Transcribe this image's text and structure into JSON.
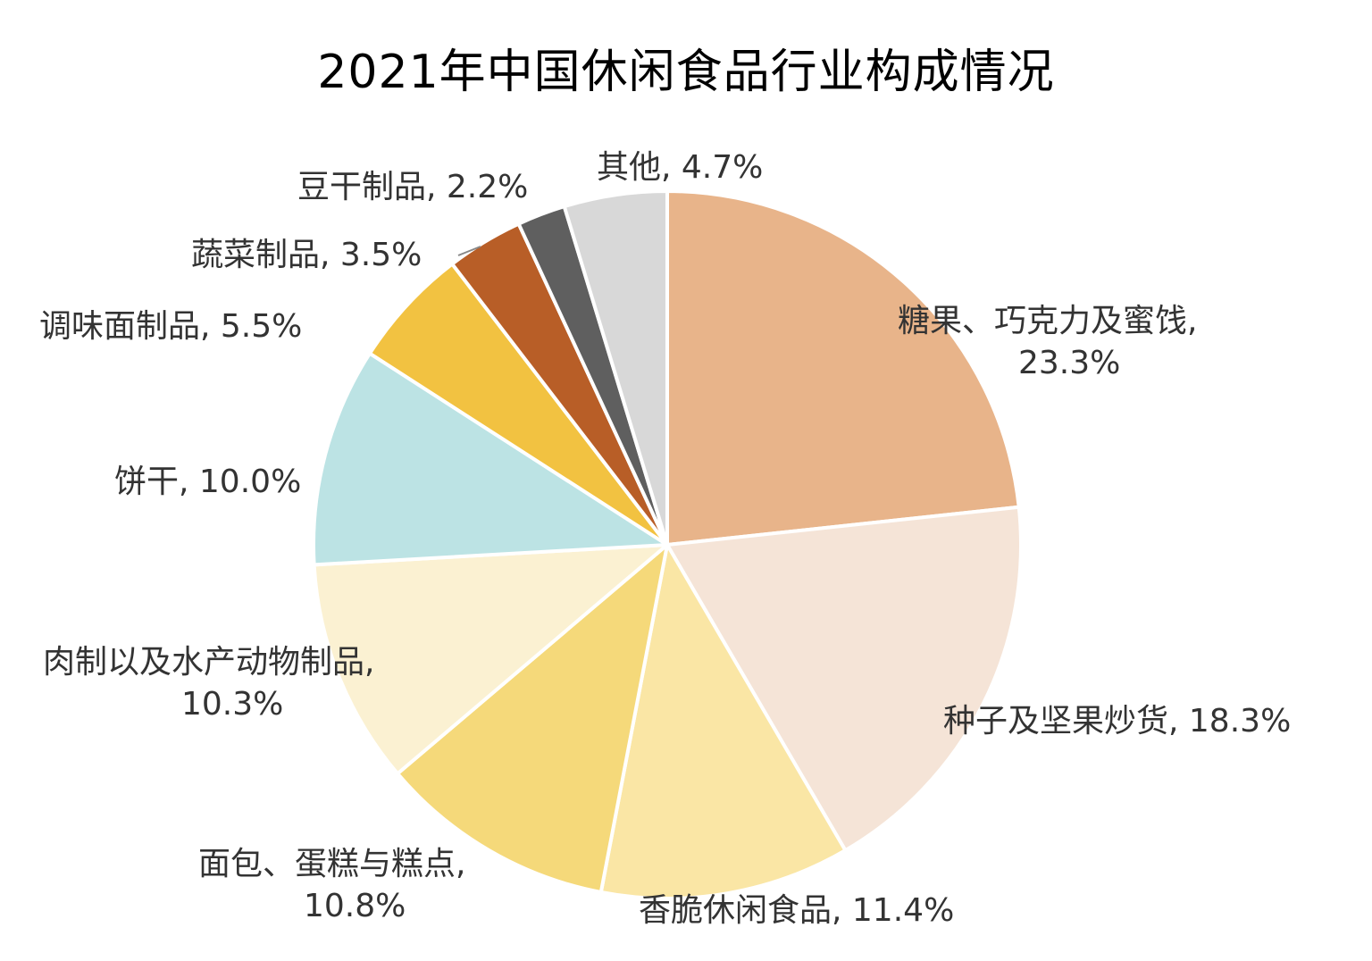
{
  "chart_data": {
    "type": "pie",
    "title": "2021年中国休闲食品行业构成情况",
    "slices": [
      {
        "label": "糖果、巧克力及蜜饯",
        "value": 23.3,
        "display": "23.3%",
        "color": "#E8B48A"
      },
      {
        "label": "种子及坚果炒货",
        "value": 18.3,
        "display": "18.3%",
        "color": "#F5E4D7"
      },
      {
        "label": "香脆休闲食品",
        "value": 11.4,
        "display": "11.4%",
        "color": "#FAE6A5"
      },
      {
        "label": "面包、蛋糕与糕点",
        "value": 10.8,
        "display": "10.8%",
        "color": "#F5D97A"
      },
      {
        "label": "肉制以及水产动物制品",
        "value": 10.3,
        "display": "10.3%",
        "color": "#FBF1D2"
      },
      {
        "label": "饼干",
        "value": 10.0,
        "display": "10.0%",
        "color": "#BCE3E4"
      },
      {
        "label": "调味面制品",
        "value": 5.5,
        "display": "5.5%",
        "color": "#F2C241"
      },
      {
        "label": "蔬菜制品",
        "value": 3.5,
        "display": "3.5%",
        "color": "#B85E27"
      },
      {
        "label": "豆干制品",
        "value": 2.2,
        "display": "2.2%",
        "color": "#5F5F5F"
      },
      {
        "label": "其他",
        "value": 4.7,
        "display": "4.7%",
        "color": "#D8D8D8"
      }
    ],
    "start_position": "12 o'clock",
    "direction": "clockwise",
    "legend": "none",
    "data_labels": "category and percent, outside slices"
  }
}
